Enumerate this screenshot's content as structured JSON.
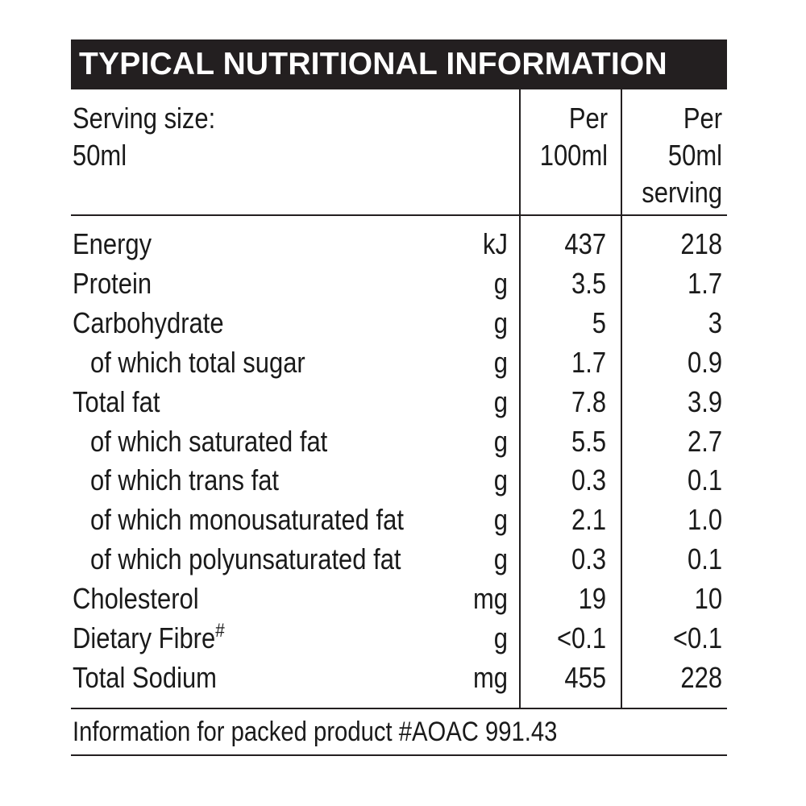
{
  "title": "TYPICAL NUTRITIONAL INFORMATION",
  "header": {
    "serving_label": "Serving size:",
    "serving_value": "50ml",
    "col1_line1": "Per",
    "col1_line2": "100ml",
    "col2_line1": "Per",
    "col2_line2": "50ml",
    "col2_line3": "serving"
  },
  "rows": [
    {
      "name": "Energy",
      "unit": "kJ",
      "per100": "437",
      "perServing": "218",
      "indent": false,
      "sup": ""
    },
    {
      "name": "Protein",
      "unit": "g",
      "per100": "3.5",
      "perServing": "1.7",
      "indent": false,
      "sup": ""
    },
    {
      "name": "Carbohydrate",
      "unit": "g",
      "per100": "5",
      "perServing": "3",
      "indent": false,
      "sup": ""
    },
    {
      "name": "of which total sugar",
      "unit": "g",
      "per100": "1.7",
      "perServing": "0.9",
      "indent": true,
      "sup": ""
    },
    {
      "name": "Total fat",
      "unit": "g",
      "per100": "7.8",
      "perServing": "3.9",
      "indent": false,
      "sup": ""
    },
    {
      "name": "of which saturated fat",
      "unit": "g",
      "per100": "5.5",
      "perServing": "2.7",
      "indent": true,
      "sup": ""
    },
    {
      "name": "of which trans fat",
      "unit": "g",
      "per100": "0.3",
      "perServing": "0.1",
      "indent": true,
      "sup": ""
    },
    {
      "name": "of which monousaturated fat",
      "unit": "g",
      "per100": "2.1",
      "perServing": "1.0",
      "indent": true,
      "sup": ""
    },
    {
      "name": "of which polyunsaturated fat",
      "unit": "g",
      "per100": "0.3",
      "perServing": "0.1",
      "indent": true,
      "sup": ""
    },
    {
      "name": "Cholesterol",
      "unit": "mg",
      "per100": "19",
      "perServing": "10",
      "indent": false,
      "sup": ""
    },
    {
      "name": "Dietary Fibre",
      "unit": "g",
      "per100": "<0.1",
      "perServing": "<0.1",
      "indent": false,
      "sup": "#"
    },
    {
      "name": "Total Sodium",
      "unit": "mg",
      "per100": "455",
      "perServing": "228",
      "indent": false,
      "sup": ""
    }
  ],
  "footer": "Information for packed product #AOAC 991.43"
}
